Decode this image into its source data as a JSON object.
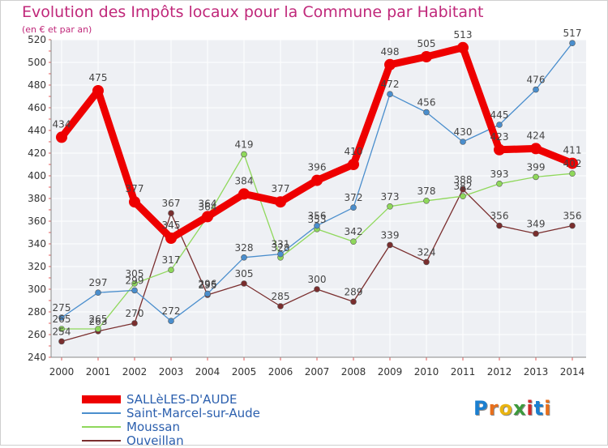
{
  "chart_data": {
    "type": "line",
    "title": "Evolution des Impôts locaux pour la Commune par Habitant",
    "subtitle": "(en € et par an)",
    "xlabel": "",
    "ylabel": "",
    "categories": [
      "2000",
      "2001",
      "2002",
      "2003",
      "2004",
      "2005",
      "2006",
      "2007",
      "2008",
      "2009",
      "2010",
      "2011",
      "2012",
      "2013",
      "2014"
    ],
    "ylim": [
      240,
      520
    ],
    "yticks": [
      240,
      260,
      280,
      300,
      320,
      340,
      360,
      380,
      400,
      420,
      440,
      460,
      480,
      500,
      520
    ],
    "grid": true,
    "series": [
      {
        "name": "SALLèLES-D'AUDE",
        "color": "#ee0000",
        "values": [
          434,
          475,
          377,
          345,
          364,
          384,
          377,
          396,
          410,
          498,
          505,
          513,
          423,
          424,
          411
        ],
        "labels": [
          "434",
          "475",
          "377",
          "345",
          "364",
          "384",
          "377",
          "396",
          "410",
          "498",
          "505",
          "513",
          "423",
          "424",
          "411"
        ]
      },
      {
        "name": "Saint-Marcel-sur-Aude",
        "color": "#4a8ecd",
        "values": [
          275,
          297,
          299,
          272,
          296,
          328,
          331,
          356,
          372,
          472,
          456,
          430,
          445,
          476,
          517
        ],
        "labels": [
          "275",
          "297",
          "299",
          "272",
          "296",
          "328",
          "331",
          "356",
          "372",
          "472",
          "456",
          "430",
          "445",
          "476",
          "517"
        ]
      },
      {
        "name": "Moussan",
        "color": "#8fd85b",
        "values": [
          265,
          265,
          305,
          317,
          364,
          419,
          328,
          353,
          342,
          373,
          378,
          382,
          393,
          399,
          402
        ],
        "labels": [
          "265",
          "265",
          "305",
          "317",
          "364",
          "419",
          "328",
          "353",
          "342",
          "373",
          "378",
          "382",
          "393",
          "399",
          "402"
        ]
      },
      {
        "name": "Ouveillan",
        "color": "#7a2e2e",
        "values": [
          254,
          263,
          270,
          367,
          295,
          305,
          285,
          300,
          289,
          339,
          324,
          388,
          356,
          349,
          356
        ],
        "labels": [
          "254",
          "263",
          "270",
          "367",
          "295",
          "305",
          "285",
          "300",
          "289",
          "339",
          "324",
          "388",
          "356",
          "349",
          "356"
        ]
      }
    ]
  },
  "logo": {
    "letters": [
      "P",
      "r",
      "o",
      "x",
      "i",
      "t",
      "i"
    ],
    "colors": [
      "#1b7fd0",
      "#e86f1b",
      "#e9b411",
      "#3c9a3c",
      "#d02b2b",
      "#1b7fd0",
      "#e86f1b"
    ]
  }
}
